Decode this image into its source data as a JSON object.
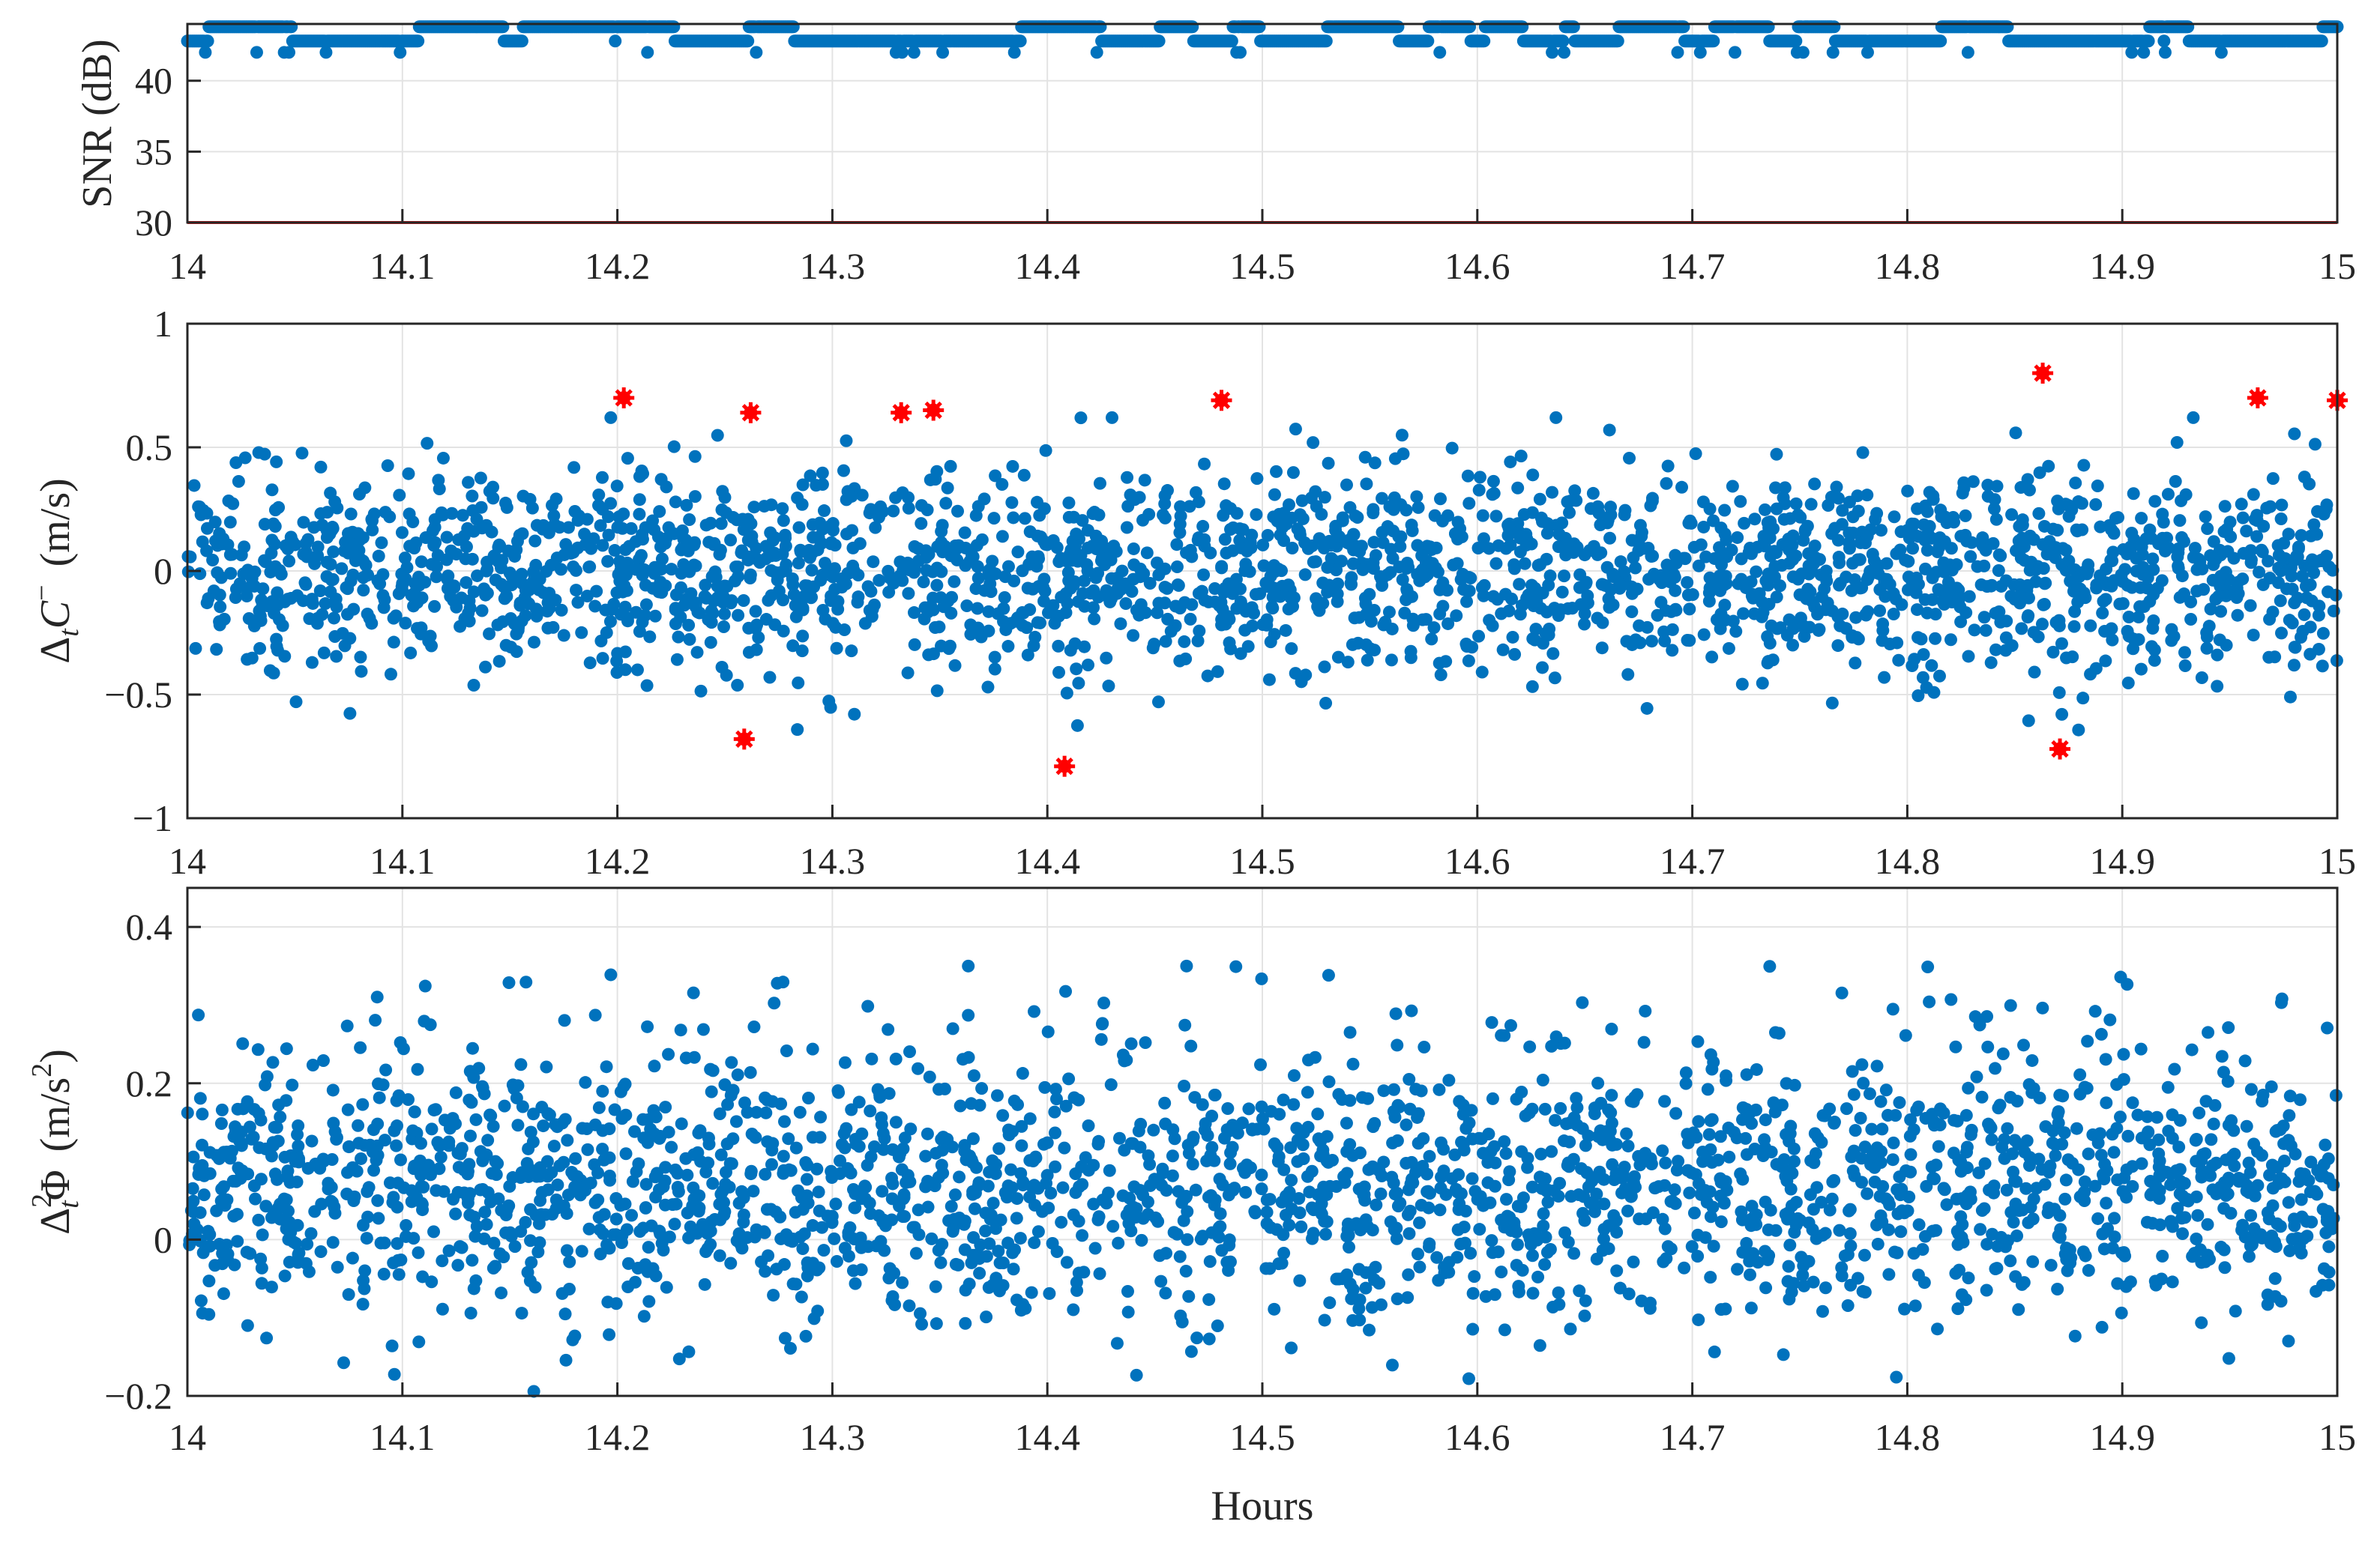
{
  "x_axis": {
    "label": "Hours",
    "range": [
      14,
      15
    ],
    "ticks": [
      14,
      14.1,
      14.2,
      14.3,
      14.4,
      14.5,
      14.6,
      14.7,
      14.8,
      14.9,
      15
    ],
    "tick_labels": [
      "14",
      "14.1",
      "14.2",
      "14.3",
      "14.4",
      "14.5",
      "14.6",
      "14.7",
      "14.8",
      "14.9",
      "15"
    ]
  },
  "colors": {
    "points": "#0072BD",
    "outliers": "#FF0000",
    "threshold": "#E31A1C",
    "grid": "#E3E3E3",
    "axes": "#262626"
  },
  "chart_data": [
    {
      "type": "scatter",
      "ylabel": "SNR (dB)",
      "ylim": [
        30,
        44
      ],
      "yticks": [
        30,
        35,
        40
      ],
      "ytick_labels": [
        "30",
        "35",
        "40"
      ],
      "xlim": [
        14,
        15
      ],
      "grid": true,
      "threshold_line": {
        "y": 30
      },
      "levels": [
        42.8,
        43.8
      ],
      "sampling": {
        "points": 1800
      },
      "series": [
        {
          "kind": "snr",
          "values_note": ""
        }
      ]
    },
    {
      "type": "scatter",
      "ylabel": "Δ_t C⁻ (m/s)",
      "ylabel_parts": {
        "delta": "Δ",
        "sub": "t",
        "var": "C",
        "sup": "−",
        "unit": "(m/s)"
      },
      "ylim": [
        -1,
        1
      ],
      "yticks": [
        -1,
        -0.5,
        0,
        0.5,
        1
      ],
      "ytick_labels": [
        "−1",
        "−0.5",
        "0",
        "0.5",
        "1"
      ],
      "xlim": [
        14,
        15
      ],
      "grid": true,
      "noise_std": 0.2,
      "sampling": {
        "points": 2400
      },
      "outliers": [
        {
          "x": 14.203,
          "y": 0.7
        },
        {
          "x": 14.262,
          "y": 0.64
        },
        {
          "x": 14.332,
          "y": 0.64
        },
        {
          "x": 14.347,
          "y": 0.65
        },
        {
          "x": 14.481,
          "y": 0.69
        },
        {
          "x": 14.863,
          "y": 0.8
        },
        {
          "x": 14.963,
          "y": 0.7
        },
        {
          "x": 15.0,
          "y": 0.69
        },
        {
          "x": 14.259,
          "y": -0.68
        },
        {
          "x": 14.408,
          "y": -0.79
        },
        {
          "x": 14.871,
          "y": -0.72
        }
      ]
    },
    {
      "type": "scatter",
      "ylabel": "Δ_t² Φ (m/s²)",
      "ylabel_parts": {
        "delta": "Δ",
        "sub": "t",
        "sup": "2",
        "var": "Φ",
        "unit_pre": "(m/s",
        "unit_sup": "2",
        "unit_post": ")"
      },
      "ylim": [
        -0.2,
        0.45
      ],
      "yticks": [
        -0.2,
        0,
        0.2,
        0.4
      ],
      "ytick_labels": [
        "−0.2",
        "0",
        "0.2",
        "0.4"
      ],
      "xlim": [
        14,
        15
      ],
      "grid": true,
      "center": 0.07,
      "noise_std": 0.08,
      "sampling": {
        "points": 2400
      }
    }
  ]
}
